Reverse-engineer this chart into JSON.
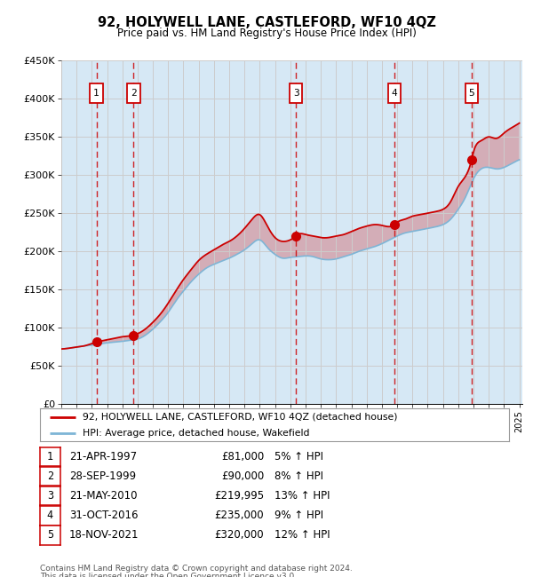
{
  "title": "92, HOLYWELL LANE, CASTLEFORD, WF10 4QZ",
  "subtitle": "Price paid vs. HM Land Registry's House Price Index (HPI)",
  "x_start_year": 1995,
  "x_end_year": 2025,
  "y_min": 0,
  "y_max": 450000,
  "y_ticks": [
    0,
    50000,
    100000,
    150000,
    200000,
    250000,
    300000,
    350000,
    400000,
    450000
  ],
  "y_tick_labels": [
    "£0",
    "£50K",
    "£100K",
    "£150K",
    "£200K",
    "£250K",
    "£300K",
    "£350K",
    "£400K",
    "£450K"
  ],
  "sales": [
    {
      "label": "1",
      "date": "21-APR-1997",
      "year": 1997.3,
      "price": 81000,
      "hpi_pct": "5% ↑ HPI"
    },
    {
      "label": "2",
      "date": "28-SEP-1999",
      "year": 1999.74,
      "price": 90000,
      "hpi_pct": "8% ↑ HPI"
    },
    {
      "label": "3",
      "date": "21-MAY-2010",
      "year": 2010.38,
      "price": 219995,
      "hpi_pct": "13% ↑ HPI"
    },
    {
      "label": "4",
      "date": "31-OCT-2016",
      "year": 2016.83,
      "price": 235000,
      "hpi_pct": "9% ↑ HPI"
    },
    {
      "label": "5",
      "date": "18-NOV-2021",
      "year": 2021.88,
      "price": 320000,
      "hpi_pct": "12% ↑ HPI"
    }
  ],
  "red_line_color": "#cc0000",
  "blue_line_color": "#7eb5d6",
  "shade_color": "#d6e8f5",
  "vline_color": "#cc0000",
  "box_color": "#cc0000",
  "grid_color": "#cccccc",
  "bg_color": "#ffffff",
  "legend_line1": "92, HOLYWELL LANE, CASTLEFORD, WF10 4QZ (detached house)",
  "legend_line2": "HPI: Average price, detached house, Wakefield",
  "footer1": "Contains HM Land Registry data © Crown copyright and database right 2024.",
  "footer2": "This data is licensed under the Open Government Licence v3.0.",
  "hpi_curve_x": [
    1995.0,
    1995.5,
    1996.0,
    1996.5,
    1997.0,
    1997.5,
    1998.0,
    1998.5,
    1999.0,
    1999.5,
    2000.0,
    2000.5,
    2001.0,
    2001.5,
    2002.0,
    2002.5,
    2003.0,
    2003.5,
    2004.0,
    2004.5,
    2005.0,
    2005.5,
    2006.0,
    2006.5,
    2007.0,
    2007.5,
    2008.0,
    2008.5,
    2009.0,
    2009.5,
    2010.0,
    2010.5,
    2011.0,
    2011.5,
    2012.0,
    2012.5,
    2013.0,
    2013.5,
    2014.0,
    2014.5,
    2015.0,
    2015.5,
    2016.0,
    2016.5,
    2017.0,
    2017.5,
    2018.0,
    2018.5,
    2019.0,
    2019.5,
    2020.0,
    2020.5,
    2021.0,
    2021.5,
    2022.0,
    2022.5,
    2023.0,
    2023.5,
    2024.0,
    2024.5,
    2025.0
  ],
  "hpi_curve_y": [
    72000,
    73000,
    74500,
    76000,
    77000,
    78500,
    80000,
    81000,
    82000,
    83500,
    85000,
    90000,
    98000,
    108000,
    120000,
    135000,
    148000,
    160000,
    170000,
    178000,
    183000,
    187000,
    191000,
    196000,
    202000,
    210000,
    215000,
    205000,
    196000,
    191000,
    192000,
    193000,
    194000,
    193000,
    190000,
    189000,
    190000,
    193000,
    196000,
    200000,
    203000,
    206000,
    210000,
    215000,
    220000,
    224000,
    226000,
    228000,
    230000,
    232000,
    235000,
    242000,
    255000,
    272000,
    295000,
    308000,
    310000,
    308000,
    310000,
    315000,
    320000
  ],
  "price_curve_x": [
    1995.0,
    1995.5,
    1996.0,
    1996.5,
    1997.3,
    1997.5,
    1998.0,
    1998.5,
    1999.0,
    1999.74,
    2000.0,
    2000.5,
    2001.0,
    2001.5,
    2002.0,
    2002.5,
    2003.0,
    2003.5,
    2004.0,
    2004.5,
    2005.0,
    2005.5,
    2006.0,
    2006.5,
    2007.0,
    2007.5,
    2008.0,
    2008.5,
    2009.0,
    2009.5,
    2010.0,
    2010.38,
    2010.5,
    2011.0,
    2011.5,
    2012.0,
    2012.5,
    2013.0,
    2013.5,
    2014.0,
    2014.5,
    2015.0,
    2015.5,
    2016.0,
    2016.83,
    2017.0,
    2017.5,
    2018.0,
    2018.5,
    2019.0,
    2019.5,
    2020.0,
    2020.5,
    2021.0,
    2021.88,
    2022.0,
    2022.5,
    2023.0,
    2023.5,
    2024.0,
    2024.5,
    2025.0
  ],
  "price_curve_y": [
    72000,
    73000,
    74500,
    76000,
    81000,
    82000,
    84000,
    86000,
    88000,
    90000,
    92000,
    98000,
    107000,
    118000,
    132000,
    148000,
    163000,
    176000,
    188000,
    196000,
    202000,
    208000,
    213000,
    220000,
    230000,
    242000,
    248000,
    233000,
    218000,
    213000,
    215000,
    219995,
    222000,
    222000,
    220000,
    218000,
    218000,
    220000,
    222000,
    226000,
    230000,
    233000,
    235000,
    234000,
    235000,
    238000,
    242000,
    246000,
    248000,
    250000,
    252000,
    255000,
    265000,
    285000,
    320000,
    330000,
    345000,
    350000,
    348000,
    355000,
    362000,
    368000
  ]
}
